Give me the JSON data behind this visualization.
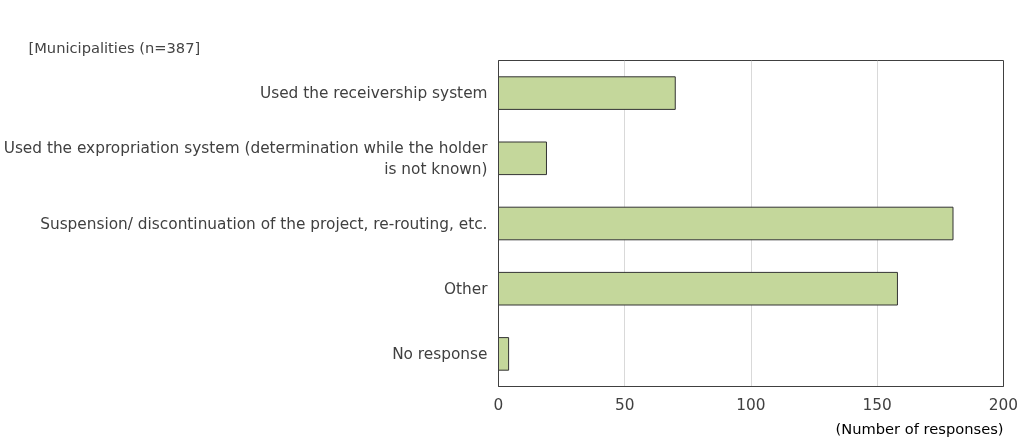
{
  "chart_data": {
    "type": "bar",
    "orientation": "horizontal",
    "title": "[Municipalities (n=387]",
    "xlabel": "(Number of responses)",
    "categories": [
      "Used the receivership system",
      "Used the expropriation system (determination while the holder is not known)",
      "Suspension/ discontinuation of the project, re-routing, etc.",
      "Other",
      "No response"
    ],
    "values": [
      70,
      19,
      180,
      158,
      4
    ],
    "color": "#c4d79b",
    "xlim": [
      0,
      200
    ],
    "xticks": [
      0,
      50,
      100,
      150,
      200
    ],
    "grid": "x"
  }
}
